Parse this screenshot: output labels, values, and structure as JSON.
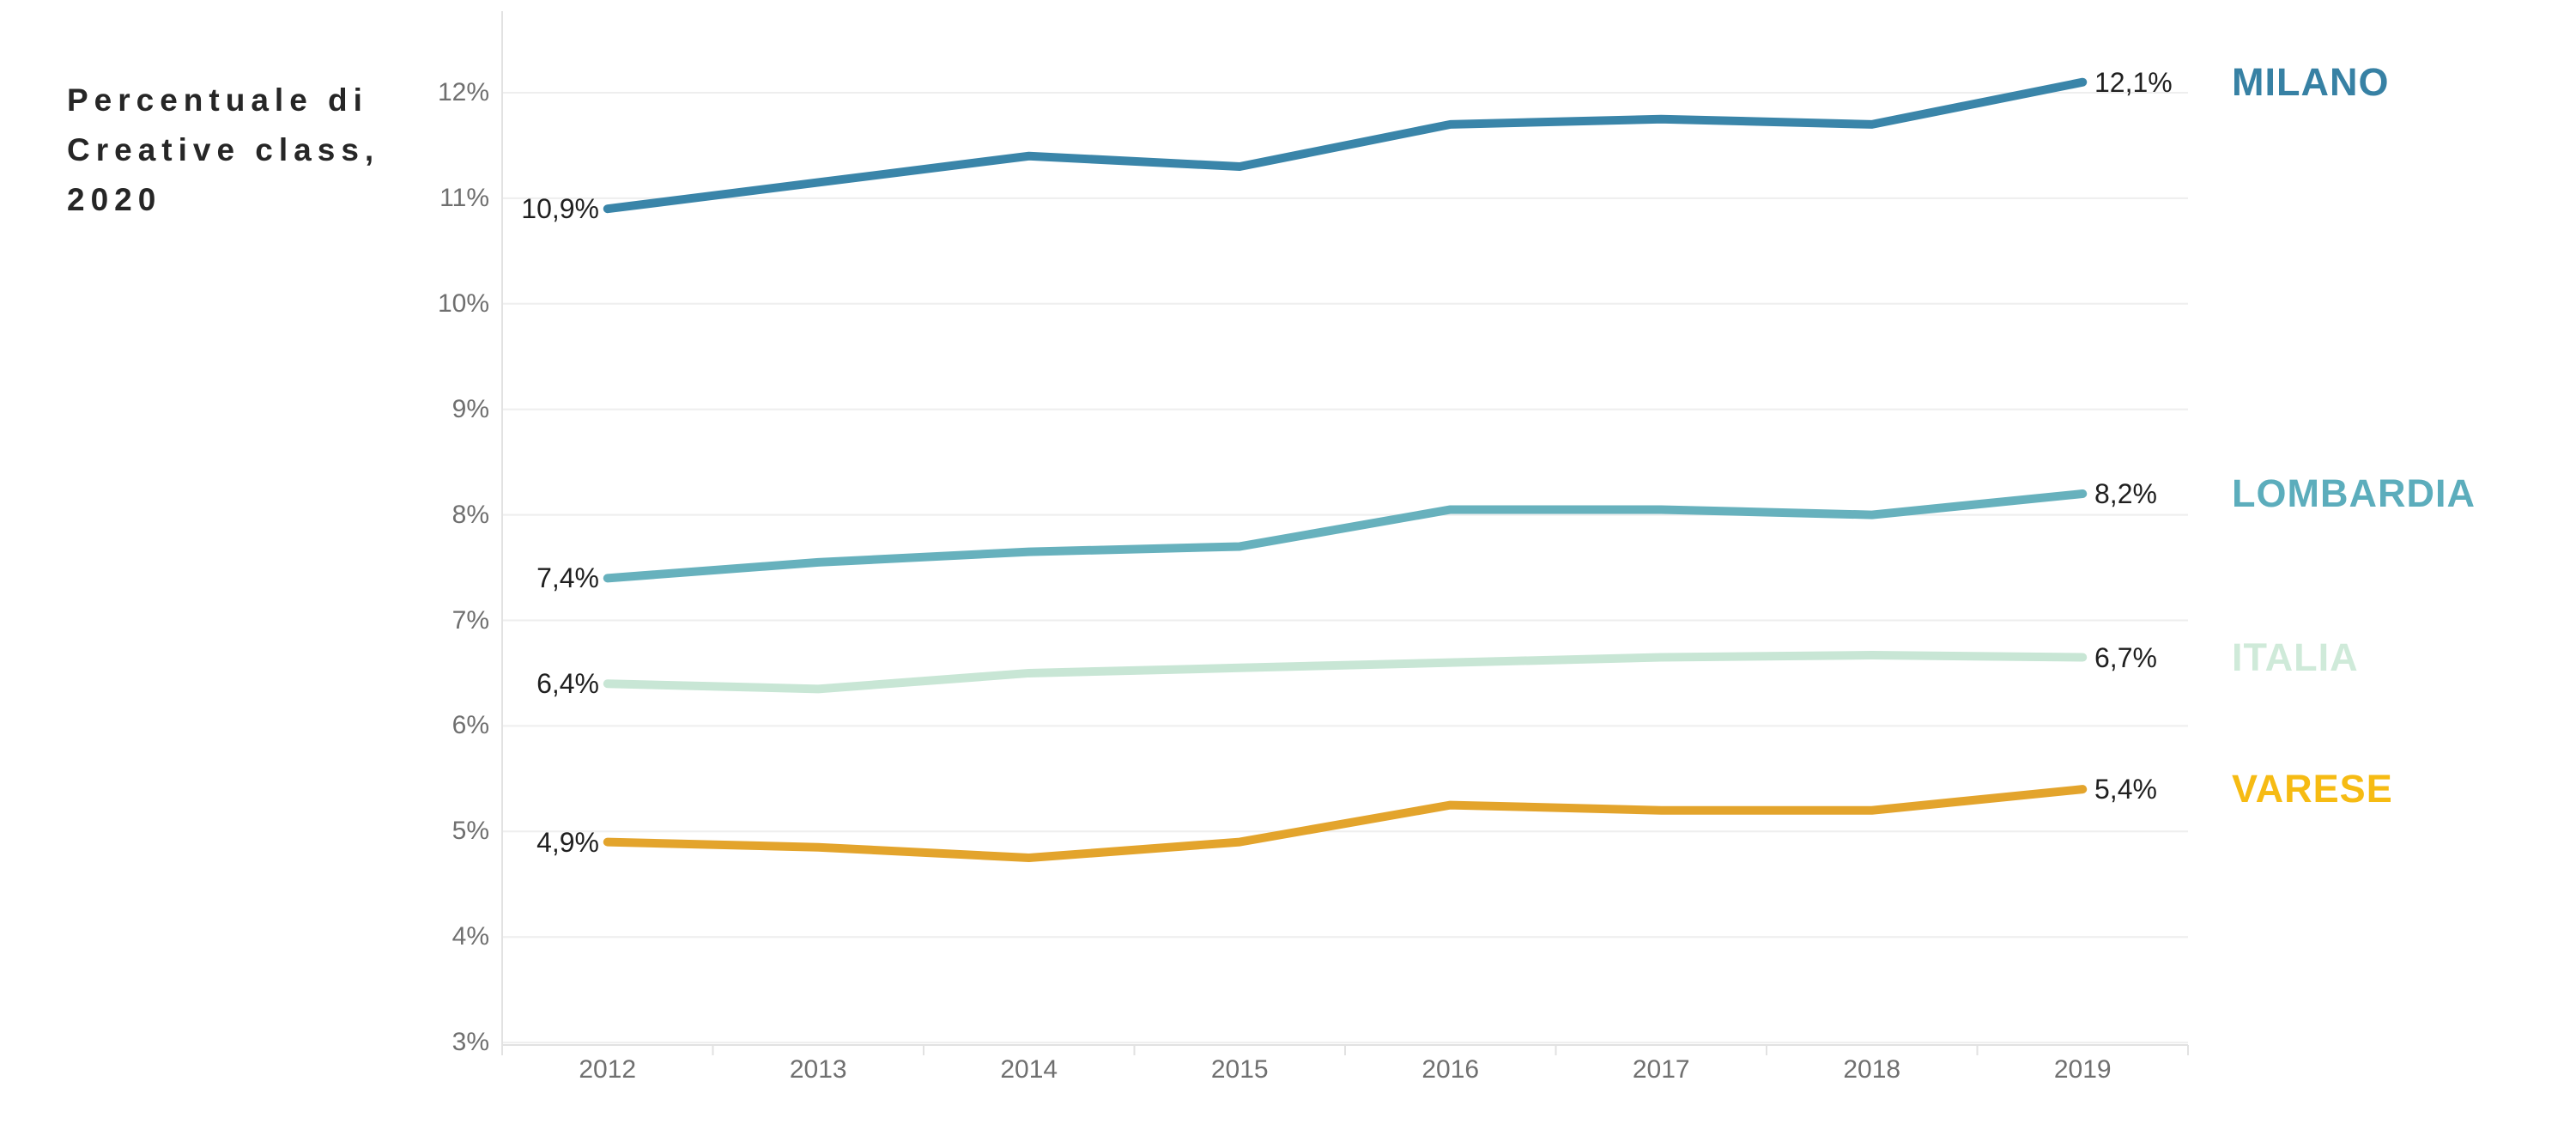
{
  "chart_data": {
    "type": "line",
    "title": "Percentuale di\nCreative class,\n2020",
    "xlabel": "",
    "ylabel": "",
    "x": [
      "2012",
      "2013",
      "2014",
      "2015",
      "2016",
      "2017",
      "2018",
      "2019"
    ],
    "y_axis": {
      "min": 3,
      "max": 12,
      "unit": "%",
      "tick_labels": [
        "12%",
        "11%",
        "10%",
        "9%",
        "8%",
        "7%",
        "6%",
        "5%",
        "4%",
        "3%"
      ]
    },
    "ylim": [
      3,
      12
    ],
    "grid": "horizontal",
    "legend_position": "right",
    "series": [
      {
        "name": "MILANO",
        "color": "#3a85a9",
        "label_color": "#3781a4",
        "values": [
          10.9,
          11.15,
          11.4,
          11.3,
          11.7,
          11.75,
          11.7,
          12.1
        ],
        "first_label": "10,9%",
        "last_label": "12,1%"
      },
      {
        "name": "LOMBARDIA",
        "color": "#67b1bd",
        "label_color": "#5cadbc",
        "values": [
          7.4,
          7.55,
          7.65,
          7.7,
          8.05,
          8.05,
          8.0,
          8.2
        ],
        "first_label": "7,4%",
        "last_label": "8,2%"
      },
      {
        "name": "ITALIA",
        "color": "#c8e6d5",
        "label_color": "#cfead9",
        "values": [
          6.4,
          6.35,
          6.5,
          6.55,
          6.6,
          6.65,
          6.67,
          6.65
        ],
        "first_label": "6,4%",
        "last_label": "6,7%"
      },
      {
        "name": "VARESE",
        "color": "#e3a42c",
        "label_color": "#f6bb13",
        "values": [
          4.9,
          4.85,
          4.75,
          4.9,
          5.25,
          5.2,
          5.2,
          5.4
        ],
        "first_label": "4,9%",
        "last_label": "5,4%"
      }
    ],
    "style": {
      "grid_color": "#eeeeee",
      "axis_color": "#e2e2e2",
      "tick_text_color": "#6f6f6f",
      "value_label_color": "#1f1f1f",
      "title_color": "#262626",
      "background": "#ffffff"
    }
  }
}
